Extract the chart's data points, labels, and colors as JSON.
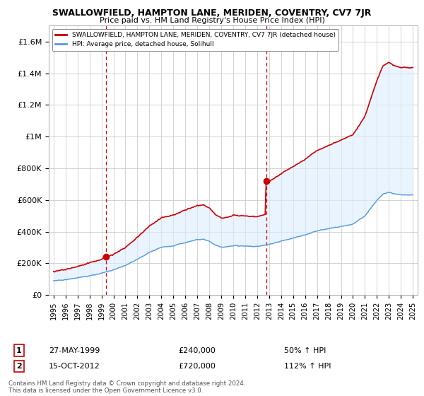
{
  "title": "SWALLOWFIELD, HAMPTON LANE, MERIDEN, COVENTRY, CV7 7JR",
  "subtitle": "Price paid vs. HM Land Registry's House Price Index (HPI)",
  "red_label": "SWALLOWFIELD, HAMPTON LANE, MERIDEN, COVENTRY, CV7 7JR (detached house)",
  "blue_label": "HPI: Average price, detached house, Solihull",
  "purchase1_date": "27-MAY-1999",
  "purchase1_price": 240000,
  "purchase1_pct": "50% ↑ HPI",
  "purchase2_date": "15-OCT-2012",
  "purchase2_price": 720000,
  "purchase2_pct": "112% ↑ HPI",
  "footer": "Contains HM Land Registry data © Crown copyright and database right 2024.\nThis data is licensed under the Open Government Licence v3.0.",
  "ylim": [
    0,
    1700000
  ],
  "yticks": [
    0,
    200000,
    400000,
    600000,
    800000,
    1000000,
    1200000,
    1400000,
    1600000
  ],
  "ytick_labels": [
    "£0",
    "£200K",
    "£400K",
    "£600K",
    "£800K",
    "£1M",
    "£1.2M",
    "£1.4M",
    "£1.6M"
  ],
  "vline1_year": 1999.38,
  "vline2_year": 2012.79,
  "dot1_year": 1999.38,
  "dot1_price": 240000,
  "dot2_year": 2012.79,
  "dot2_price": 720000,
  "red_color": "#cc0000",
  "blue_color": "#5599dd",
  "fill_color": "#ddeeff",
  "vline_color": "#cc0000",
  "background_color": "#ffffff",
  "grid_color": "#cccccc"
}
